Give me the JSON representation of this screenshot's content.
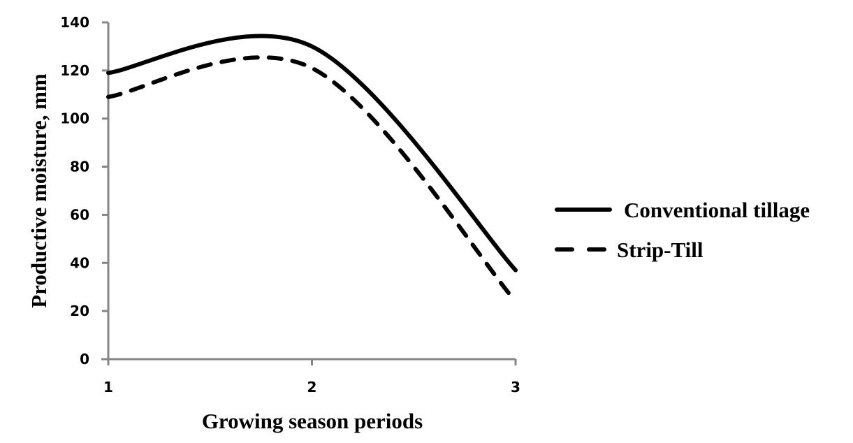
{
  "chart_data": {
    "type": "line",
    "title": "",
    "xlabel": "Growing season periods",
    "ylabel": "Productive moisture, mm",
    "x": [
      1,
      2,
      3
    ],
    "x_ticks": [
      "1",
      "2",
      "3"
    ],
    "xlim": [
      1,
      3
    ],
    "ylim": [
      0,
      140
    ],
    "y_ticks": [
      "0",
      "20",
      "40",
      "60",
      "80",
      "100",
      "120",
      "140"
    ],
    "grid": false,
    "smoothed": true,
    "legend_position": "right",
    "series": [
      {
        "name": "Conventional tillage",
        "style": "solid",
        "color": "#000000",
        "values": [
          119,
          130,
          37
        ]
      },
      {
        "name": "Strip-Till",
        "style": "dashed",
        "color": "#000000",
        "values": [
          109,
          121,
          24
        ]
      }
    ]
  }
}
